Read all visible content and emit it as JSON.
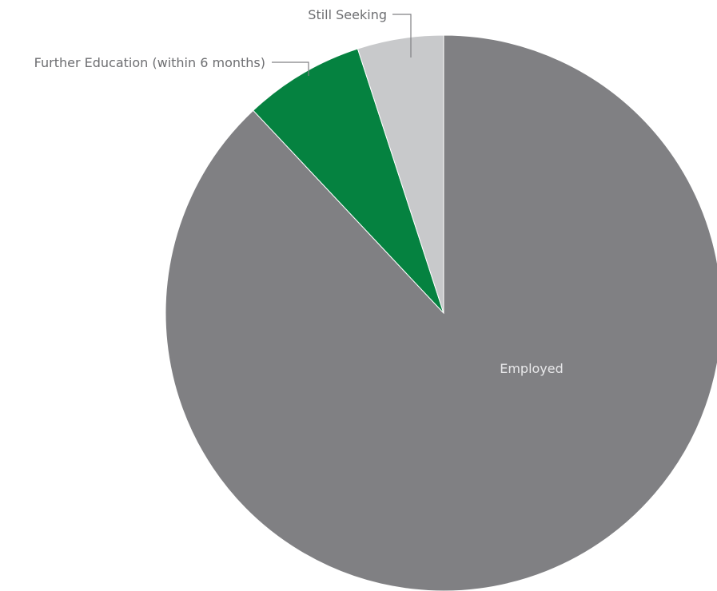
{
  "chart_data": {
    "type": "pie",
    "title": "",
    "slices": [
      {
        "label": "Employed",
        "value": 88,
        "color": "#808083",
        "label_color": "#e8e8ea",
        "label_position": "inside"
      },
      {
        "label": "Further Education (within 6 months)",
        "value": 7,
        "color": "#058240",
        "label_color": "#6d6e71",
        "label_position": "outside"
      },
      {
        "label": "Still Seeking",
        "value": 5,
        "color": "#c8c9cb",
        "label_color": "#6d6e71",
        "label_position": "outside"
      }
    ],
    "start_angle": "12 o'clock",
    "direction": "clockwise",
    "legend": "none",
    "leader_line_color": "#808083"
  }
}
